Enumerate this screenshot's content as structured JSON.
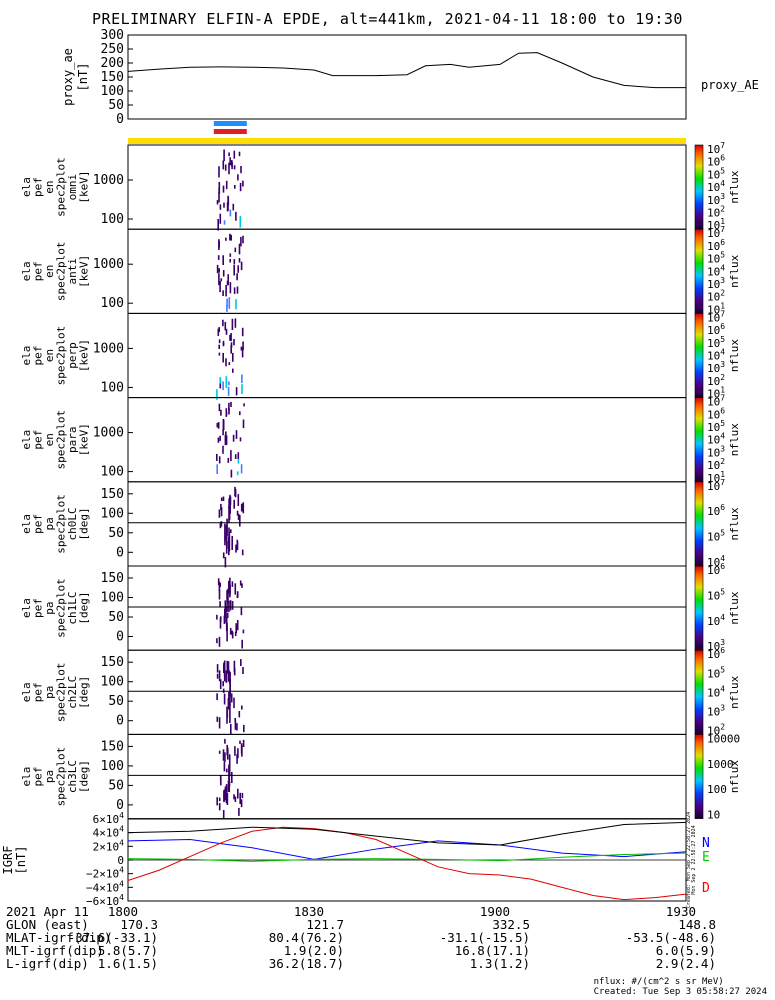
{
  "title": "PRELIMINARY ELFIN-A EPDE, alt=441km, 2021-04-11 18:00 to 19:30",
  "top_panel": {
    "ylabel": [
      "proxy_ae",
      "[nT]"
    ],
    "yticks": [
      "300",
      "250",
      "200",
      "150",
      "100",
      "50",
      "0"
    ],
    "legend": "proxy_AE"
  },
  "spectrogram_panels": [
    {
      "ylabel": [
        "ela",
        "pef",
        "en",
        "spec2plot",
        "omni",
        "[keV]"
      ],
      "yticks": [
        "1000",
        "100"
      ],
      "cbar_label": "nflux"
    },
    {
      "ylabel": [
        "ela",
        "pef",
        "en",
        "spec2plot",
        "anti",
        "[keV]"
      ],
      "yticks": [
        "1000",
        "100"
      ],
      "cbar_label": "nflux"
    },
    {
      "ylabel": [
        "ela",
        "pef",
        "en",
        "spec2plot",
        "perp",
        "[keV]"
      ],
      "yticks": [
        "1000",
        "100"
      ],
      "cbar_label": "nflux"
    },
    {
      "ylabel": [
        "ela",
        "pef",
        "en",
        "spec2plot",
        "para",
        "[keV]"
      ],
      "yticks": [
        "1000",
        "100"
      ],
      "cbar_label": "nflux"
    },
    {
      "ylabel": [
        "ela",
        "pef",
        "pa",
        "spec2plot",
        "ch0LC",
        "[deg]"
      ],
      "yticks": [
        "150",
        "100",
        "50",
        "0"
      ],
      "cbar_label": "nflux"
    },
    {
      "ylabel": [
        "ela",
        "pef",
        "pa",
        "spec2plot",
        "ch1LC",
        "[deg]"
      ],
      "yticks": [
        "150",
        "100",
        "50",
        "0"
      ],
      "cbar_label": "nflux"
    },
    {
      "ylabel": [
        "ela",
        "pef",
        "pa",
        "spec2plot",
        "ch2LC",
        "[deg]"
      ],
      "yticks": [
        "150",
        "100",
        "50",
        "0"
      ],
      "cbar_label": "nflux"
    },
    {
      "ylabel": [
        "ela",
        "pef",
        "pa",
        "spec2plot",
        "ch3LC",
        "[deg]"
      ],
      "yticks": [
        "150",
        "100",
        "50",
        "0"
      ],
      "cbar_label": "nflux"
    }
  ],
  "colorbars": [
    {
      "ticks": [
        "10^7",
        "10^6",
        "10^5",
        "10^4",
        "10^3",
        "10^2",
        "10^1"
      ]
    },
    {
      "ticks": [
        "10^7",
        "10^6",
        "10^5",
        "10^4",
        "10^3",
        "10^2",
        "10^1"
      ]
    },
    {
      "ticks": [
        "10^7",
        "10^6",
        "10^5",
        "10^4",
        "10^3",
        "10^2",
        "10^1"
      ]
    },
    {
      "ticks": [
        "10^7",
        "10^6",
        "10^5",
        "10^4",
        "10^3",
        "10^2",
        "10^1"
      ]
    },
    {
      "ticks": [
        "10^7",
        "10^6",
        "10^5",
        "10^4"
      ]
    },
    {
      "ticks": [
        "10^6",
        "10^5",
        "10^4",
        "10^3"
      ]
    },
    {
      "ticks": [
        "10^6",
        "10^5",
        "10^4",
        "10^3",
        "10^2"
      ]
    },
    {
      "ticks": [
        "10000",
        "1000",
        "100",
        "10"
      ]
    }
  ],
  "bottom_panel": {
    "ylabel": [
      "IGRF",
      "[nT]"
    ],
    "yticks": [
      "6×10^4",
      "4×10^4",
      "2×10^4",
      "0",
      "−2×10^4",
      "−4×10^4",
      "−6×10^4"
    ],
    "legend": [
      "N",
      "E",
      "D"
    ],
    "legend_colors": [
      "#0000ff",
      "#00cc00",
      "#ff0000"
    ],
    "side_text": [
      "Created: Mon Sep 2 22:58:27 2024",
      "Mon Sep 2 22:58:27 2024"
    ]
  },
  "footer": {
    "date": "2021 Apr 11",
    "times": [
      "1800",
      "1830",
      "1900",
      "1930"
    ],
    "rows": [
      {
        "label": "GLON (east)",
        "values": [
          "170.3",
          "121.7",
          "332.5",
          "148.8"
        ]
      },
      {
        "label": "MLAT-igrf(dip)",
        "values": [
          "-37.6(-33.1)",
          "80.4(76.2)",
          "-31.1(-15.5)",
          "-53.5(-48.6)"
        ]
      },
      {
        "label": "MLT-igrf(dip)",
        "values": [
          "5.8(5.7)",
          "1.9(2.0)",
          "16.8(17.1)",
          "6.0(5.9)"
        ]
      },
      {
        "label": "L-igrf(dip)",
        "values": [
          "1.6(1.5)",
          "36.2(18.7)",
          "1.3(1.2)",
          "2.9(2.4)"
        ]
      }
    ],
    "units_note": "nflux: #/(cm^2 s sr MeV)",
    "created": "Created: Tue Sep  3 05:58:27 2024"
  },
  "colors": {
    "status_bar": "#ffdd00",
    "science_zone_blue": "#1f8fff",
    "science_zone_red": "#e02020",
    "spectrogram_dark": "#3a006a",
    "spectrogram_mid": "#4080ff",
    "spectrogram_cyan": "#00c8e0"
  },
  "chart_data": {
    "type": "line",
    "time_range": [
      "2021-04-11 18:00",
      "2021-04-11 19:30"
    ],
    "x_unit": "minutes after 18:00",
    "series": [
      {
        "name": "proxy_AE",
        "x": [
          0,
          5,
          10,
          15,
          20,
          25,
          30,
          33,
          36,
          40,
          45,
          48,
          52,
          55,
          60,
          63,
          66,
          70,
          75,
          80,
          85,
          90
        ],
        "values": [
          170,
          178,
          185,
          186,
          185,
          182,
          175,
          155,
          155,
          155,
          158,
          190,
          195,
          185,
          195,
          235,
          237,
          200,
          150,
          120,
          112,
          112
        ],
        "ylim": [
          0,
          300
        ]
      },
      {
        "name": "N",
        "x": [
          0,
          10,
          20,
          30,
          40,
          50,
          60,
          70,
          80,
          90
        ],
        "values": [
          28000,
          30000,
          18000,
          1000,
          16000,
          28000,
          22000,
          10000,
          5000,
          12000
        ],
        "ylim": [
          -60000,
          60000
        ]
      },
      {
        "name": "E",
        "x": [
          0,
          10,
          20,
          30,
          40,
          50,
          60,
          70,
          80,
          90
        ],
        "values": [
          2000,
          1000,
          -2000,
          1000,
          2000,
          1000,
          -1000,
          4000,
          8000,
          10000
        ],
        "ylim": [
          -60000,
          60000
        ]
      },
      {
        "name": "D",
        "x": [
          0,
          5,
          10,
          15,
          20,
          25,
          30,
          35,
          40,
          45,
          50,
          55,
          60,
          65,
          70,
          75,
          80,
          85,
          90
        ],
        "values": [
          -30000,
          -15000,
          5000,
          25000,
          42000,
          48000,
          46000,
          40000,
          30000,
          10000,
          -10000,
          -20000,
          -22000,
          -28000,
          -40000,
          -52000,
          -58000,
          -55000,
          -50000
        ],
        "ylim": [
          -60000,
          60000
        ]
      },
      {
        "name": "",
        "x": [
          0,
          10,
          20,
          30,
          40,
          50,
          60,
          70,
          80,
          90
        ],
        "values": [
          40000,
          42000,
          48000,
          45000,
          35000,
          25000,
          22000,
          38000,
          52000,
          55000
        ],
        "ylim": [
          -60000,
          60000
        ]
      }
    ],
    "spectrogram_activity_window_minutes": [
      14,
      19
    ],
    "energy_axes_keV": {
      "scale": "log",
      "ticks": [
        100,
        1000
      ]
    },
    "pitch_angle_axes_deg": {
      "range": [
        0,
        180
      ],
      "ticks": [
        0,
        50,
        100,
        150
      ]
    }
  }
}
